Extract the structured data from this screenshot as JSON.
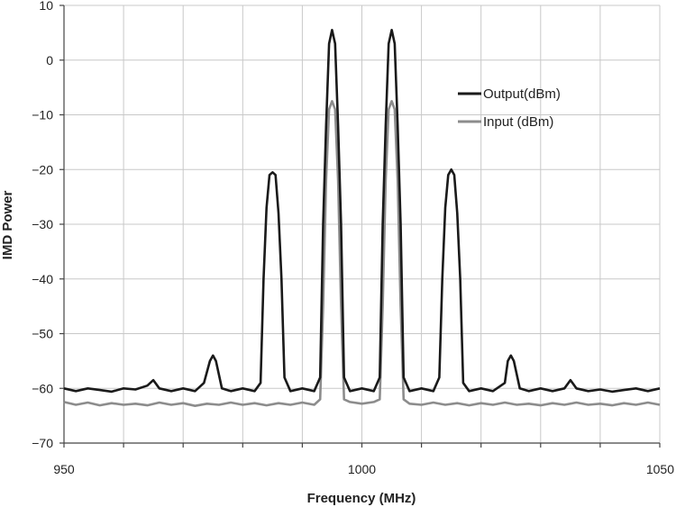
{
  "chart_data": {
    "type": "line",
    "title": "",
    "xlabel": "Frequency (MHz)",
    "ylabel": "IMD Power",
    "xlim": [
      950,
      1050
    ],
    "ylim": [
      -70,
      10
    ],
    "x_ticks": [
      950,
      1000,
      1050
    ],
    "x_tick_labels": [
      "950",
      "1000",
      "1050"
    ],
    "x_grid_step": 10,
    "y_ticks": [
      10,
      0,
      -10,
      -20,
      -30,
      -40,
      -50,
      -60,
      -70
    ],
    "y_tick_labels": [
      "10",
      "0",
      "−10",
      "−20",
      "−30",
      "−40",
      "−50",
      "−60",
      "−70"
    ],
    "grid": true,
    "legend_position": "upper-right",
    "series": [
      {
        "name": "Output(dBm)",
        "color": "#1a1a1a",
        "x": [
          950,
          952,
          954,
          956,
          958,
          960,
          962,
          964,
          965,
          966,
          968,
          970,
          972,
          973.5,
          974.5,
          975,
          975.5,
          976.5,
          978,
          980,
          982,
          983,
          983.5,
          984,
          984.5,
          985,
          985.5,
          986,
          986.5,
          987,
          988,
          990,
          992,
          993,
          993.5,
          994,
          994.5,
          995,
          995.5,
          996,
          996.5,
          997,
          998,
          1000,
          1002,
          1003,
          1003.5,
          1004,
          1004.5,
          1005,
          1005.5,
          1006,
          1006.5,
          1007,
          1008,
          1010,
          1012,
          1013,
          1013.5,
          1014,
          1014.5,
          1015,
          1015.5,
          1016,
          1016.5,
          1017,
          1018,
          1020,
          1022,
          1024,
          1024.5,
          1025,
          1025.5,
          1026.5,
          1028,
          1030,
          1032,
          1034,
          1035,
          1036,
          1038,
          1040,
          1042,
          1044,
          1046,
          1048,
          1050
        ],
        "values": [
          -60,
          -60.5,
          -60,
          -60.3,
          -60.6,
          -60,
          -60.2,
          -59.5,
          -58.5,
          -60,
          -60.5,
          -60,
          -60.5,
          -59,
          -55,
          -54,
          -55,
          -60,
          -60.5,
          -60,
          -60.5,
          -59,
          -40,
          -27,
          -21,
          -20.5,
          -21,
          -28,
          -40,
          -58,
          -60.5,
          -60,
          -60.5,
          -58,
          -30,
          -12,
          3,
          5.5,
          3,
          -12,
          -30,
          -58,
          -60.5,
          -60,
          -60.5,
          -58,
          -30,
          -12,
          3,
          5.5,
          3,
          -12,
          -30,
          -58,
          -60.5,
          -60,
          -60.5,
          -58,
          -40,
          -27,
          -21,
          -20,
          -21,
          -28,
          -40,
          -59,
          -60.5,
          -60,
          -60.5,
          -59,
          -55,
          -54,
          -55,
          -60,
          -60.5,
          -60,
          -60.5,
          -60,
          -58.5,
          -60,
          -60.5,
          -60.2,
          -60.6,
          -60.3,
          -60,
          -60.5,
          -60
        ]
      },
      {
        "name": "Input (dBm)",
        "color": "#8c8c8c",
        "x": [
          950,
          952,
          954,
          956,
          958,
          960,
          962,
          964,
          966,
          968,
          970,
          972,
          974,
          976,
          978,
          980,
          982,
          984,
          986,
          988,
          990,
          992,
          993,
          993.5,
          994,
          994.5,
          995,
          995.5,
          996,
          996.5,
          997,
          998,
          1000,
          1002,
          1003,
          1003.5,
          1004,
          1004.5,
          1005,
          1005.5,
          1006,
          1006.5,
          1007,
          1008,
          1010,
          1012,
          1014,
          1016,
          1018,
          1020,
          1022,
          1024,
          1026,
          1028,
          1030,
          1032,
          1034,
          1036,
          1038,
          1040,
          1042,
          1044,
          1046,
          1048,
          1050
        ],
        "values": [
          -62.5,
          -63,
          -62.6,
          -63.1,
          -62.7,
          -63,
          -62.8,
          -63.1,
          -62.6,
          -63,
          -62.7,
          -63.2,
          -62.8,
          -63,
          -62.6,
          -63,
          -62.7,
          -63.1,
          -62.7,
          -63,
          -62.6,
          -63,
          -62,
          -45,
          -22,
          -9,
          -7.5,
          -9,
          -22,
          -45,
          -62,
          -62.5,
          -62.8,
          -62.5,
          -62,
          -45,
          -22,
          -9,
          -7.5,
          -9,
          -22,
          -45,
          -62,
          -62.8,
          -63,
          -62.6,
          -63,
          -62.7,
          -63.1,
          -62.7,
          -63,
          -62.6,
          -63,
          -62.8,
          -63.1,
          -62.7,
          -63,
          -62.6,
          -63,
          -62.8,
          -63.1,
          -62.7,
          -63,
          -62.6,
          -63
        ]
      }
    ]
  }
}
